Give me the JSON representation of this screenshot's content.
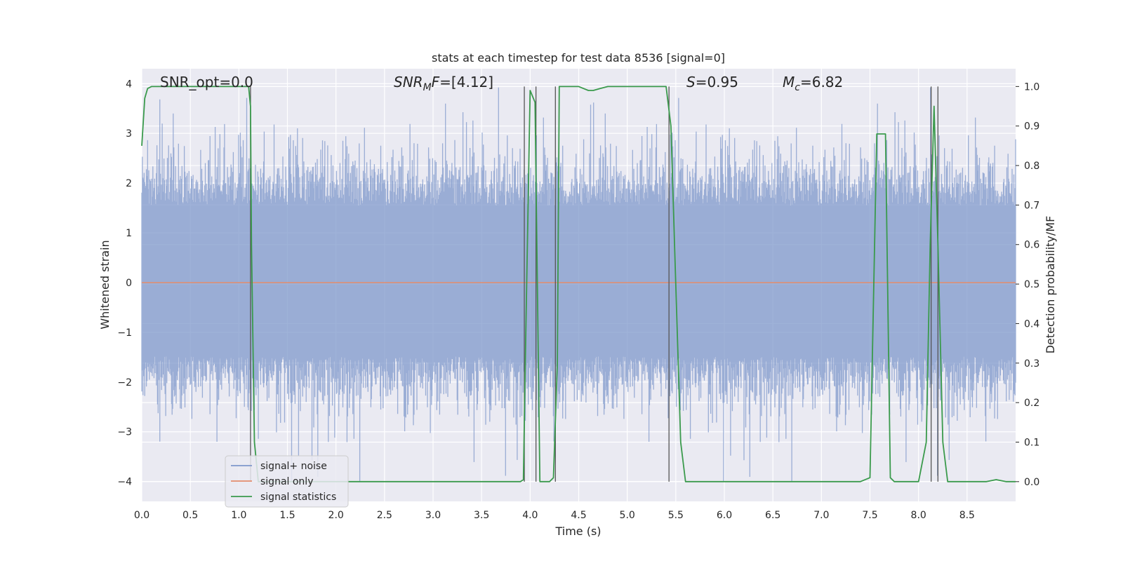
{
  "chart_data": {
    "type": "line",
    "title": "stats at each timestep for test data 8536 [signal=0]",
    "xlabel": "Time (s)",
    "ylabel": "Whitened strain",
    "y2label": "Detection probability/MF",
    "xlim": [
      0.0,
      9.0
    ],
    "ylim": [
      -4.4,
      4.3
    ],
    "y2lim": [
      -0.05,
      1.045
    ],
    "xticks": [
      "0.0",
      "0.5",
      "1.0",
      "1.5",
      "2.0",
      "2.5",
      "3.0",
      "3.5",
      "4.0",
      "4.5",
      "5.0",
      "5.5",
      "6.0",
      "6.5",
      "7.0",
      "7.5",
      "8.0",
      "8.5"
    ],
    "yticks": [
      "−4",
      "−3",
      "−2",
      "−1",
      "0",
      "1",
      "2",
      "3",
      "4"
    ],
    "y2ticks": [
      "0.0",
      "0.1",
      "0.2",
      "0.3",
      "0.4",
      "0.5",
      "0.6",
      "0.7",
      "0.8",
      "0.9",
      "1.0"
    ],
    "grid": true,
    "legend_position": "lower-left",
    "annotations": [
      {
        "id": "snr-opt",
        "text": "SNR_opt=0.0"
      },
      {
        "id": "snr-mf",
        "prefix": "SNR",
        "sub": "M",
        "suffix": "F=[4.12]"
      },
      {
        "id": "s-stat",
        "prefix": "S",
        "suffix": "=0.95"
      },
      {
        "id": "mc",
        "prefix": "M",
        "sub": "c",
        "suffix": "=6.82"
      }
    ],
    "series": [
      {
        "name": "signal+ noise",
        "axis": "left",
        "color": "#7f98cb",
        "style": "dense-noise",
        "x_range": [
          0.0,
          9.0
        ],
        "approx_amplitude_range": [
          -4.0,
          4.0
        ],
        "typical_envelope": [
          -2.4,
          2.5
        ]
      },
      {
        "name": "signal only",
        "axis": "left",
        "color": "#e38c6c",
        "x": [
          0.0,
          9.0
        ],
        "y": [
          0.0,
          0.0
        ]
      },
      {
        "name": "signal statistics",
        "axis": "right",
        "color": "#3a9a4c",
        "x": [
          0.0,
          0.03,
          0.06,
          0.1,
          0.3,
          0.6,
          0.9,
          1.1,
          1.12,
          1.13,
          1.16,
          1.2,
          1.5,
          2.0,
          2.5,
          3.0,
          3.5,
          3.9,
          3.93,
          3.95,
          4.0,
          4.05,
          4.1,
          4.2,
          4.24,
          4.28,
          4.3,
          4.5,
          4.6,
          4.65,
          4.72,
          4.8,
          5.0,
          5.2,
          5.4,
          5.45,
          5.5,
          5.55,
          5.6,
          5.65,
          6.0,
          6.5,
          7.0,
          7.4,
          7.5,
          7.57,
          7.6,
          7.66,
          7.71,
          7.75,
          7.8,
          7.9,
          8.0,
          8.08,
          8.12,
          8.16,
          8.2,
          8.25,
          8.3,
          8.35,
          8.5,
          8.7,
          8.8,
          8.9,
          9.0
        ],
        "y": [
          0.85,
          0.97,
          0.995,
          1.0,
          1.0,
          1.0,
          1.0,
          1.0,
          0.95,
          0.6,
          0.1,
          0.0,
          0.0,
          0.0,
          0.0,
          0.0,
          0.0,
          0.0,
          0.005,
          0.3,
          0.99,
          0.96,
          0.0,
          0.0,
          0.01,
          0.3,
          1.0,
          1.0,
          0.99,
          0.99,
          0.995,
          1.0,
          1.0,
          1.0,
          1.0,
          0.9,
          0.5,
          0.1,
          0.0,
          0.0,
          0.0,
          0.0,
          0.0,
          0.0,
          0.01,
          0.88,
          0.88,
          0.88,
          0.01,
          0.0,
          0.0,
          0.0,
          0.0,
          0.1,
          0.6,
          0.95,
          0.6,
          0.1,
          0.0,
          0.0,
          0.0,
          0.0,
          0.005,
          0.0,
          0.0
        ]
      }
    ],
    "vertical_markers_x": [
      1.12,
      3.94,
      4.06,
      4.26,
      5.43,
      8.13,
      8.2
    ]
  }
}
